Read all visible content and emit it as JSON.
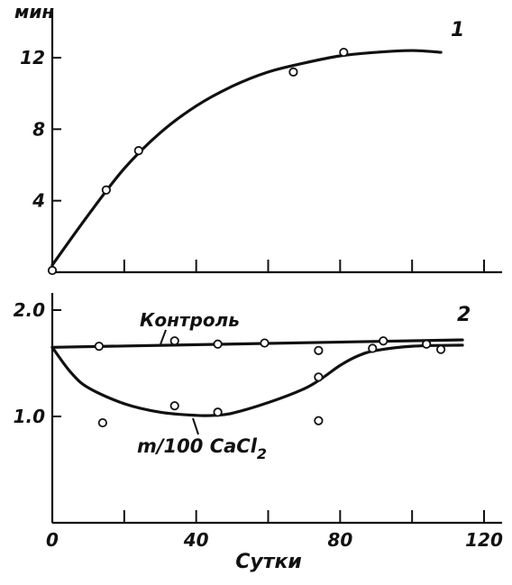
{
  "chart_data": [
    {
      "type": "line",
      "panel_label": "1",
      "ylabel": "мин",
      "xlim": [
        0,
        120
      ],
      "ylim": [
        0,
        14
      ],
      "yticks": [
        4,
        8,
        12
      ],
      "yticklabels": [
        "4",
        "8",
        "12"
      ],
      "xticks": [
        0,
        20,
        40,
        60,
        80,
        100,
        120
      ],
      "series": [
        {
          "x": [
            0,
            10,
            20,
            30,
            40,
            50,
            60,
            70,
            80,
            90,
            100,
            108
          ],
          "y": [
            0.4,
            3.2,
            5.8,
            7.8,
            9.3,
            10.4,
            11.2,
            11.7,
            12.1,
            12.3,
            12.4,
            12.3
          ]
        }
      ],
      "points": [
        {
          "x": 0,
          "y": 0.1
        },
        {
          "x": 15,
          "y": 4.6
        },
        {
          "x": 24,
          "y": 6.8
        },
        {
          "x": 67,
          "y": 11.2
        },
        {
          "x": 81,
          "y": 12.3
        }
      ]
    },
    {
      "type": "line",
      "panel_label": "2",
      "xlabel": "Сутки",
      "xlim": [
        0,
        120
      ],
      "ylim": [
        0,
        2.2
      ],
      "yticks": [
        1.0,
        2.0
      ],
      "yticklabels": [
        "1.0",
        "2.0"
      ],
      "xticks": [
        0,
        20,
        40,
        60,
        80,
        100,
        120
      ],
      "xticklabels": [
        "0",
        "",
        "40",
        "",
        "80",
        "",
        "120"
      ],
      "series": [
        {
          "name": "Контроль",
          "x": [
            0,
            114
          ],
          "y": [
            1.65,
            1.72
          ]
        },
        {
          "name": "m/100 CaCl",
          "name_subscript": "2",
          "x": [
            0,
            5,
            10,
            20,
            30,
            40,
            45,
            50,
            60,
            70,
            75,
            80,
            85,
            90,
            100,
            114
          ],
          "y": [
            1.65,
            1.42,
            1.27,
            1.12,
            1.04,
            1.01,
            1.01,
            1.03,
            1.13,
            1.26,
            1.36,
            1.48,
            1.57,
            1.62,
            1.66,
            1.67
          ]
        }
      ],
      "points": [
        {
          "x": 13,
          "y": 1.66
        },
        {
          "x": 34,
          "y": 1.71
        },
        {
          "x": 46,
          "y": 1.68
        },
        {
          "x": 59,
          "y": 1.69
        },
        {
          "x": 74,
          "y": 1.62
        },
        {
          "x": 89,
          "y": 1.64
        },
        {
          "x": 92,
          "y": 1.71
        },
        {
          "x": 104,
          "y": 1.68
        },
        {
          "x": 108,
          "y": 1.63
        },
        {
          "x": 14,
          "y": 0.94
        },
        {
          "x": 34,
          "y": 1.1
        },
        {
          "x": 46,
          "y": 1.04
        },
        {
          "x": 74,
          "y": 1.37
        },
        {
          "x": 74,
          "y": 0.96
        }
      ]
    }
  ]
}
